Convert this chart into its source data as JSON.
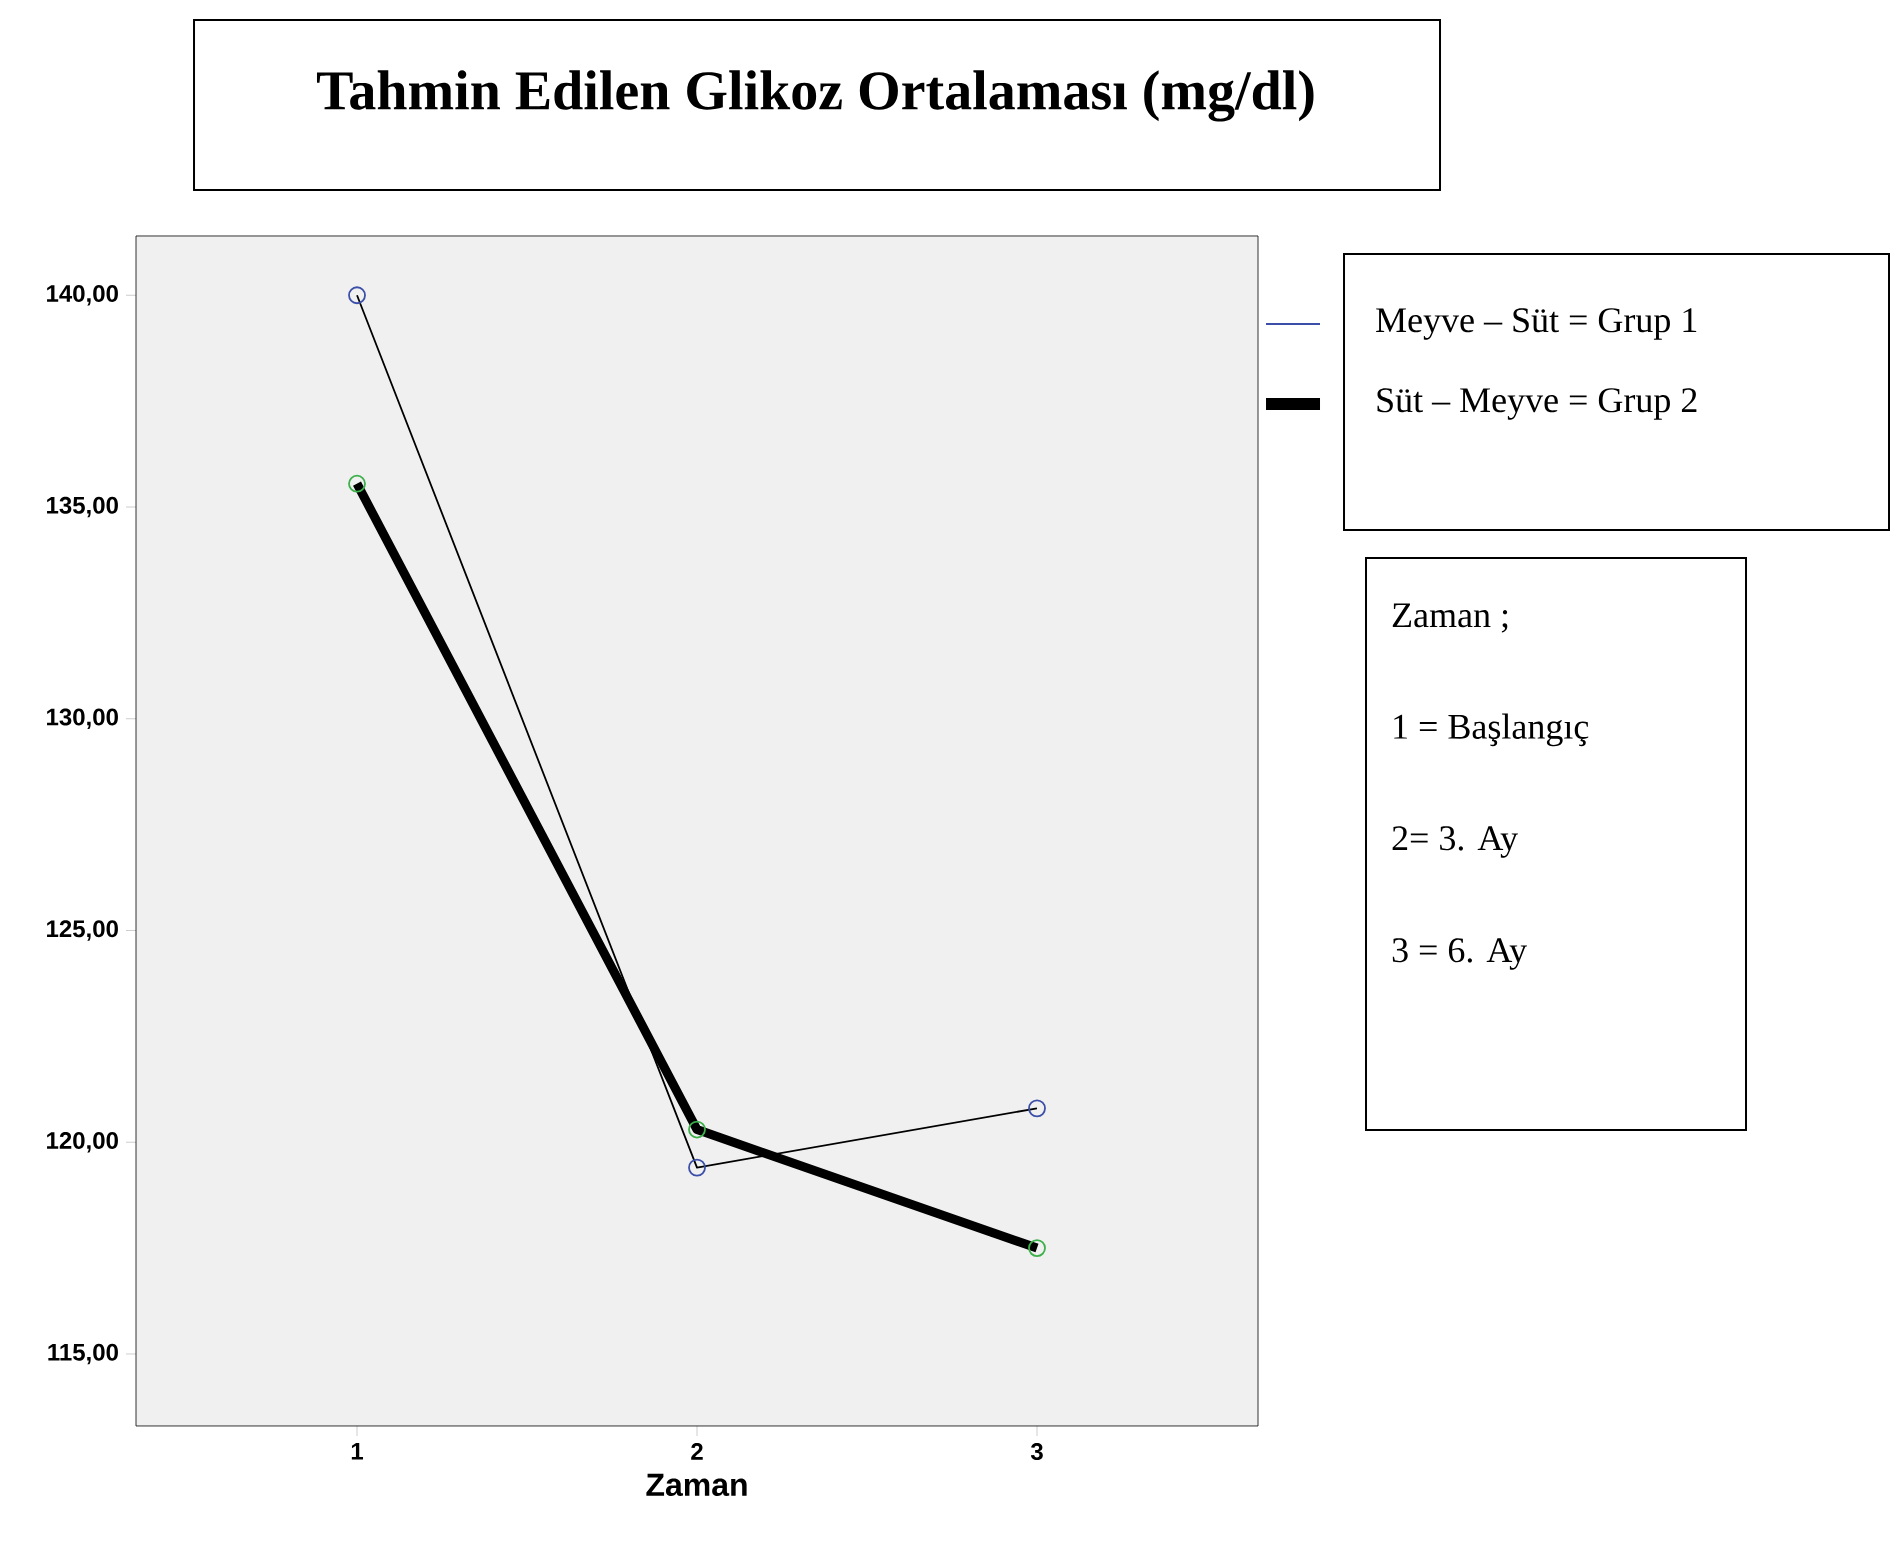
{
  "chart_data": {
    "type": "line",
    "title": "Tahmin Edilen Glikoz  Ortalaması (mg/dl)",
    "xlabel": "Zaman",
    "x": [
      1,
      2,
      3
    ],
    "series": [
      {
        "name": "Meyve – Süt = Grup 1",
        "color": "#3c4fa8",
        "values": [
          140.0,
          119.4,
          120.8
        ]
      },
      {
        "name": "Süt – Meyve = Grup 2",
        "color": "#3cb04a",
        "values": [
          135.55,
          120.3,
          117.5
        ]
      }
    ],
    "xlim": [
      0.35,
      3.65
    ],
    "xticks": [
      1,
      2,
      3
    ],
    "ylim": [
      113.3,
      141.4
    ],
    "yticks": [
      {
        "value": 115,
        "label": "115,00"
      },
      {
        "value": 120,
        "label": "120,00"
      },
      {
        "value": 125,
        "label": "125,00"
      },
      {
        "value": 130,
        "label": "130,00"
      },
      {
        "value": 135,
        "label": "135,00"
      },
      {
        "value": 140,
        "label": "140,00"
      }
    ],
    "marker": "circle",
    "line_style": "solid",
    "grid": false,
    "legend": "right",
    "annotations": [
      "Zaman ;",
      "1 = Başlangıç",
      "2=  3. Ay",
      "3 = 6. Ay"
    ]
  }
}
